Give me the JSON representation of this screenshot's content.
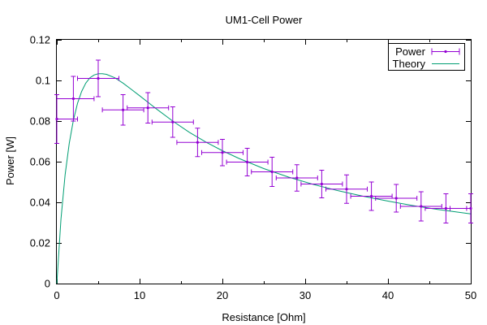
{
  "chart_data": {
    "type": "scatter",
    "title": "UM1-Cell Power",
    "xlabel": "Resistance [Ohm]",
    "ylabel": "Power [W]",
    "xlim": [
      0,
      50
    ],
    "ylim": [
      0,
      0.12
    ],
    "xticks": [
      0,
      10,
      20,
      30,
      40,
      50
    ],
    "yticks": [
      0,
      0.02,
      0.04,
      0.06,
      0.08,
      0.1,
      0.12
    ],
    "xtick_labels": [
      "0",
      "10",
      "20",
      "30",
      "40",
      "50"
    ],
    "ytick_labels": [
      "0",
      "0.02",
      "0.04",
      "0.06",
      "0.08",
      "0.1",
      "0.12"
    ],
    "grid": false,
    "legend_position": "top-right",
    "series": [
      {
        "name": "Power",
        "style": "points with x and y error bars",
        "color": "#9400d3",
        "points": [
          {
            "x": 0,
            "y": 0.081,
            "xerr": 2.5,
            "yerr": 0.012
          },
          {
            "x": 2,
            "y": 0.091,
            "xerr": 2.5,
            "yerr": 0.011
          },
          {
            "x": 5,
            "y": 0.101,
            "xerr": 2.5,
            "yerr": 0.009
          },
          {
            "x": 8,
            "y": 0.0855,
            "xerr": 2.5,
            "yerr": 0.0075
          },
          {
            "x": 11,
            "y": 0.0865,
            "xerr": 2.5,
            "yerr": 0.0075
          },
          {
            "x": 14,
            "y": 0.0795,
            "xerr": 2.5,
            "yerr": 0.0075
          },
          {
            "x": 17,
            "y": 0.0695,
            "xerr": 2.5,
            "yerr": 0.007
          },
          {
            "x": 20,
            "y": 0.0645,
            "xerr": 2.5,
            "yerr": 0.0065
          },
          {
            "x": 23,
            "y": 0.0598,
            "xerr": 2.5,
            "yerr": 0.0068
          },
          {
            "x": 26,
            "y": 0.055,
            "xerr": 2.5,
            "yerr": 0.0072
          },
          {
            "x": 29,
            "y": 0.052,
            "xerr": 2.5,
            "yerr": 0.0065
          },
          {
            "x": 32,
            "y": 0.049,
            "xerr": 2.5,
            "yerr": 0.0068
          },
          {
            "x": 35,
            "y": 0.0465,
            "xerr": 2.5,
            "yerr": 0.007
          },
          {
            "x": 38,
            "y": 0.043,
            "xerr": 2.5,
            "yerr": 0.007
          },
          {
            "x": 41,
            "y": 0.042,
            "xerr": 2.5,
            "yerr": 0.0068
          },
          {
            "x": 44,
            "y": 0.038,
            "xerr": 2.5,
            "yerr": 0.0072
          },
          {
            "x": 47,
            "y": 0.037,
            "xerr": 2.5,
            "yerr": 0.0072
          },
          {
            "x": 50,
            "y": 0.037,
            "xerr": 2.5,
            "yerr": 0.0072
          }
        ]
      },
      {
        "name": "Theory",
        "style": "line",
        "color": "#009e73",
        "x": [
          0,
          0.5,
          1,
          1.5,
          2,
          2.5,
          3,
          3.5,
          4,
          4.5,
          5,
          5.5,
          6,
          7,
          8,
          9,
          10,
          12,
          14,
          16,
          18,
          20,
          22,
          25,
          28,
          31,
          34,
          37,
          40,
          43,
          46,
          50
        ],
        "y": [
          0,
          0.0317,
          0.0535,
          0.069,
          0.0804,
          0.0887,
          0.0946,
          0.0987,
          0.1013,
          0.1027,
          0.1033,
          0.1033,
          0.103,
          0.1013,
          0.0987,
          0.0956,
          0.0925,
          0.0861,
          0.08,
          0.0745,
          0.0697,
          0.0654,
          0.0616,
          0.0566,
          0.0524,
          0.0488,
          0.0457,
          0.043,
          0.0406,
          0.0384,
          0.0365,
          0.0343
        ]
      }
    ]
  }
}
